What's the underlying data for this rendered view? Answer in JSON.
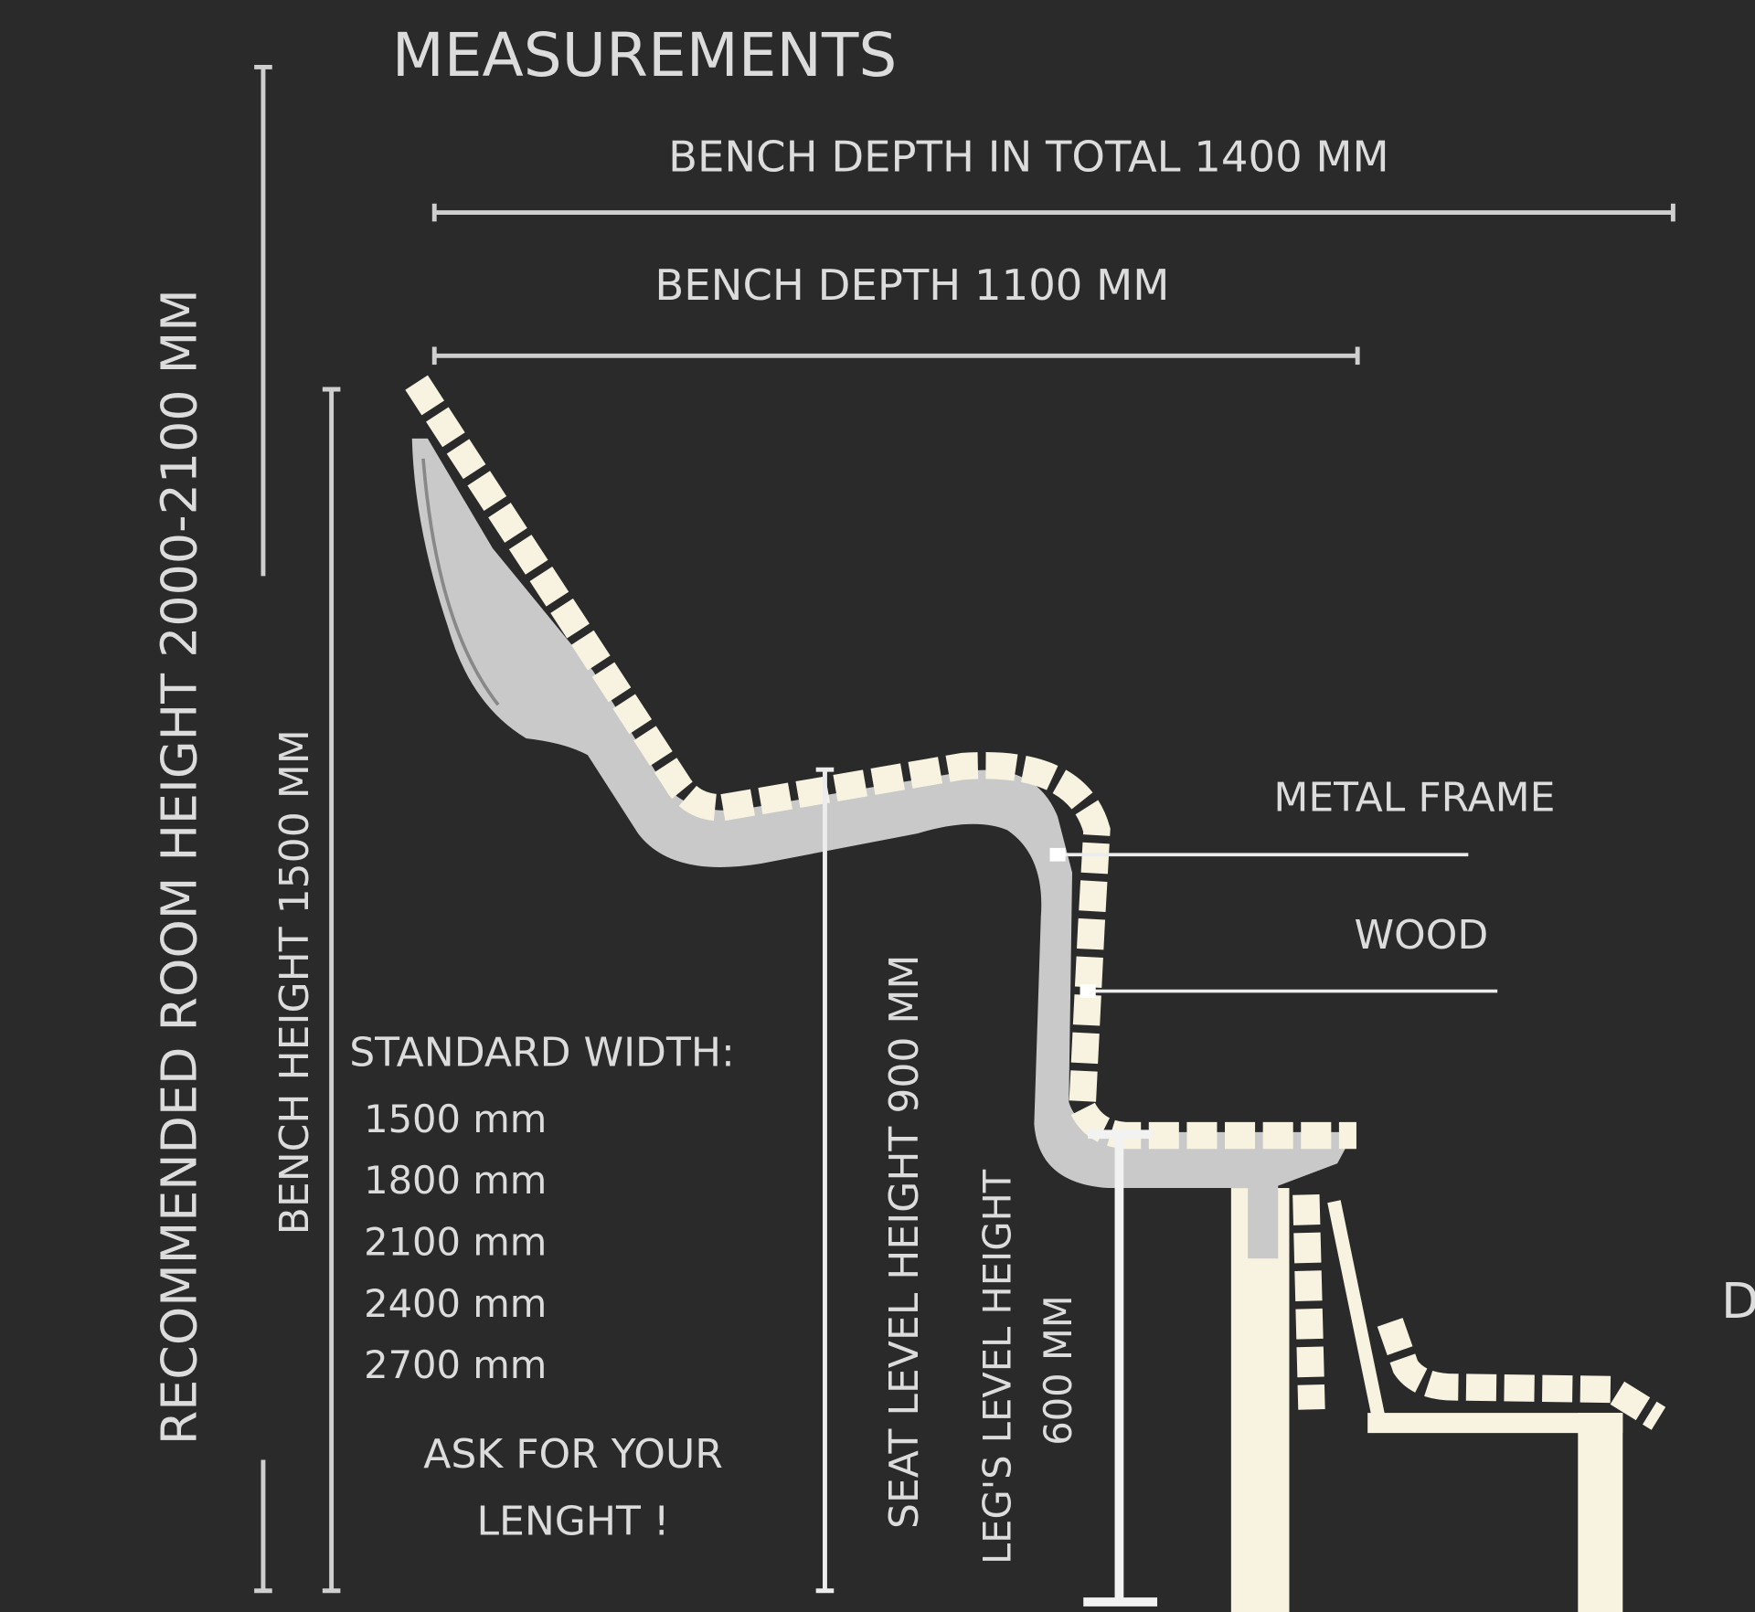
{
  "title": "MEASUREMENTS",
  "room_height": "RECOMMENDED ROOM HEIGHT 2000-2100 MM",
  "bench_height": "BENCH HEIGHT 1500 MM",
  "depth_total": "BENCH DEPTH IN TOTAL 1400 MM",
  "depth": "BENCH DEPTH 1100 MM",
  "seat_height": "SEAT LEVEL HEIGHT 900 MM",
  "leg_height_line1": "LEG'S  LEVEL HEIGHT",
  "leg_height_line2": "600 MM",
  "labels": {
    "metal_frame": "METAL FRAME",
    "wood": "WOOD"
  },
  "standard_width": {
    "heading": "STANDARD WIDTH:",
    "values": [
      "1500 mm",
      "1800 mm",
      "2100 mm",
      "2400 mm",
      "2700 mm"
    ],
    "note_line1": "ASK FOR YOUR",
    "note_line2": "LENGHT !"
  },
  "cutoff_text": "D",
  "colors": {
    "background": "#2a2a2a",
    "text": "#dcdcdc",
    "metal": "#c9c9c9",
    "wood": "#f7f3e0"
  }
}
